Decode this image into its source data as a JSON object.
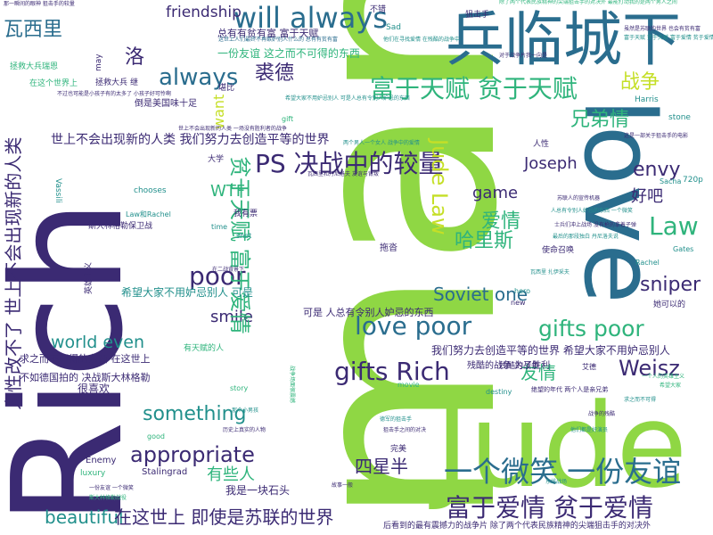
{
  "palette": {
    "background": "#ffffff",
    "indigo": "#3b2a73",
    "teal_blue": "#2a6d8e",
    "teal": "#22908c",
    "green": "#2fb47c",
    "lime": "#8fd744",
    "yellow_green": "#c5df27"
  },
  "words": {
    "w_jude_big": "Jude",
    "w_man": "man",
    "w_rich_big": "Rich",
    "w_love_big": "love",
    "w_siege": "兵临城下",
    "w_will_always": "will always",
    "w_friendship": "friendship",
    "w_wa_xi_li": "瓦西里",
    "w_luo": "洛",
    "w_always": "always",
    "w_qiu_de": "裘德",
    "w_gifted": "富于天赋 贫于天赋",
    "w_war": "战争",
    "w_brotherhood": "兄弟情",
    "w_ps_battle": "PS 决战中的较量",
    "w_jude_law_v": "Jude Law",
    "w_joseph": "Joseph",
    "w_envy": "envy",
    "w_haoba": "好吧",
    "w_game": "game",
    "w_law": "Law",
    "w_love_cn": "爱情",
    "w_harris": "哈里斯",
    "w_poor": "poor",
    "w_wtf": "WTF",
    "w_sniper": "sniper",
    "w_soviet_one": "Soviet one",
    "w_love_poor": "love poor",
    "w_gifts_poor": "gifts poor",
    "w_smile_en": "smile",
    "w_world_even": "world even",
    "w_gifts_rich": "gifts Rich",
    "w_friendship_cn": "友情",
    "w_weisz": "Weisz",
    "w_something": "something",
    "w_appropriate": "appropriate",
    "w_some_people": "有些人",
    "w_four_half": "四星半",
    "w_smile_friend": "一个微笑 一份友谊",
    "w_rich_love": "富于爱情 贫于爱情",
    "w_beautiful": "beautiful",
    "w_in_this_world": "在这世上 即使是苏联的世界",
    "w_gifted_v": "贫于天赋 富于爱情",
    "w_humanity_v": "人性改不了 世上不会出现新的人类",
    "w_want": "want",
    "w_never_new_people": "世上不会出现新的人类 我们努力去创造平等的世界",
    "w_greedy": "总有有贫有富 富于天赋",
    "w_rich_gifted_line": "一份友谊 这之而不可得的东西",
    "w_rare_people": "这世上人们最终不再嫉妒别人什么的 总有有贫有富",
    "w_hope_everyone": "希望大家不用妒忌别人 可是",
    "w_can_be": "可是 人总有令别人妒忌的东西",
    "w_we_try": "我们努力去创造平等的世界 希望大家不用妒忌别人",
    "w_cant_get": "求之而不可得的东西 在这世上",
    "w_stalingrad_cn": "斯大林格勒保卫战",
    "w_law_rachel": "Law和Rachel",
    "w_stalingrad": "Stalingrad",
    "w_enemy": "Enemy",
    "w_luxury": "luxury",
    "w_chooses": "chooses",
    "w_time": "time",
    "w_shot": "shot",
    "w_vassili": "Vassili",
    "w_sacha": "Sacha",
    "w_rachel": "Rachel",
    "w_gates": "Gates",
    "w_harris_small": "Harris",
    "w_stone": "stone",
    "w_destiny": "destiny",
    "w_story": "story",
    "w_movie": "movie",
    "w_good": "good",
    "w_gift": "gift",
    "w_may": "may",
    "w_new": "new",
    "w_hero": "hero",
    "w_sad": "Sad",
    "w_720p": "720p",
    "w_very_like": "很喜欢",
    "w_im_stone": "我是一块石头",
    "w_perfect": "完美",
    "w_cruel_war": "残酷的战争 为了胜利",
    "w_aide": "艾德",
    "w_call": "使命召唤",
    "w_sniper_cn": "狙击手",
    "w_ok": "不错",
    "w_daxue": "大学",
    "w_human": "人性",
    "w_cant_get_2": "不如德国拍的 决战斯大林格勒",
    "w_hidden": "拖沓",
    "w_fake": "倒是美国味十足",
    "w_ticket": "我有票",
    "w_heavy": "残酷的战争",
    "w_talented": "有天赋的人",
    "w_she_can": "她可以的",
    "w_compare": "堪比",
    "w_save_ryan": "拯救大兵瑞恩",
    "w_save": "拯救大兵",
    "w_in_world": "在这个世界上",
    "w_jie": "继",
    "w_heroic": "英雄主义",
    "w_despair": "绝望的年代 两个人是亲兄弟",
    "w_bottom_long": "后看到的最有震撼力的战争片 除了两个代表民族精神的尖端狙击手的对决外",
    "w_top_long": "除了两个代表民族精神的尖端狙击手的对决外 最能打动我的是两个男人之间",
    "w_top_left_long": "那一瞬间的眼神 狙击手的较量",
    "w_tiny1": "希望大家不用妒忌别人 可是人总有令别人妒忌的东西",
    "w_tiny2": "世上不会出现新的人类 一场没有胜利者的战争",
    "w_tiny3": "两个男人一个女人 战争中的爱情",
    "w_tiny4": "瓦西里和丹尼洛夫 友谊与背叛",
    "w_tiny5": "苏联人的宣传机器",
    "w_tiny6": "人总有令别人妒忌的东西 一个微笑",
    "w_tiny7": "对于战争片我一向是",
    "w_tiny8": "他们在寻找爱情 在残酷的战争中",
    "w_tiny9": "这是一部关于狙击手的电影",
    "w_tiny10": "最后的那段独白 丹尼洛夫说",
    "w_tiny11": "士兵们冲上战场 没有枪的拿着子弹",
    "w_tiny12": "一个人的英雄主义",
    "w_tiny13": "希望大家",
    "w_tiny14": "求之而不可得",
    "w_tiny15": "战争的残酷",
    "w_tiny16": "他们都是好演员",
    "w_tiny17": "不过也可能是小孩子有的太多了 小孩子好可怜啊",
    "w_tiny18": "虽然是苏联的世界 也会有贫有富",
    "w_tiny19": "富于天赋 贫于天赋 富于爱情 贫于爱情",
    "w_tiny20": "故事一般",
    "w_tiny21": "德军的狙击手",
    "w_tiny22": "狙击手之间的对决",
    "w_tiny23": "那个小男孩",
    "w_tiny24": "在二战背景下",
    "w_tiny25": "瓦西里 扎伊采夫",
    "w_tiny26": "一份友谊 一个微笑",
    "w_tiny27": "斯大林格勒战役",
    "w_tiny28": "历史上真实的人物",
    "w_tiny29": "东线战场",
    "w_tiny30": "战争场面很震撼"
  }
}
